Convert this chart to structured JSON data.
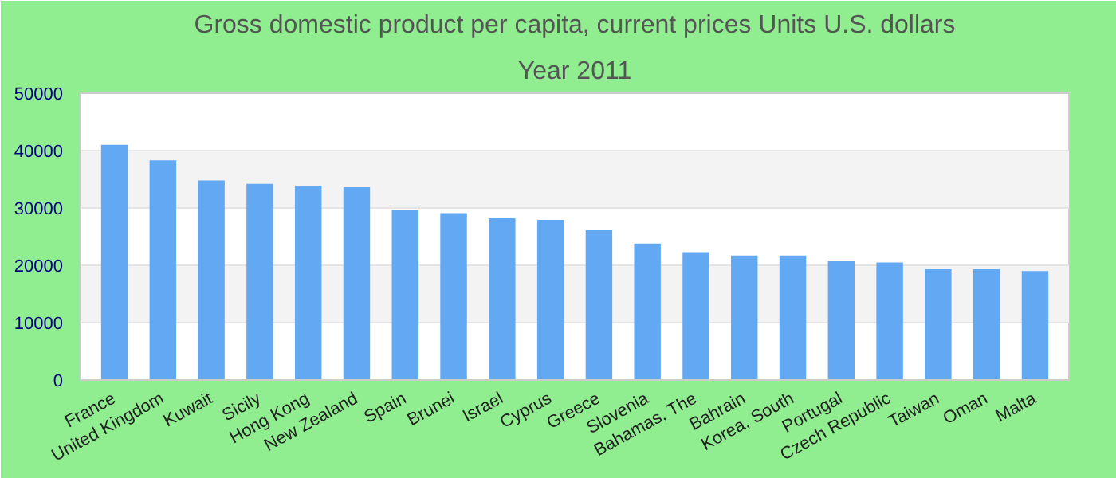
{
  "chart_data": {
    "type": "bar",
    "title": "Gross domestic product per capita, current prices Units U.S. dollars",
    "subtitle": "Year 2011",
    "categories": [
      "France",
      "United Kingdom",
      "Kuwait",
      "Sicily",
      "Hong Kong",
      "New Zealand",
      "Spain",
      "Brunei",
      "Israel",
      "Cyprus",
      "Greece",
      "Slovenia",
      "Bahamas, The",
      "Bahrain",
      "Korea, South",
      "Portugal",
      "Czech Republic",
      "Taiwan",
      "Oman",
      "Malta"
    ],
    "values": [
      41000,
      38300,
      34800,
      34200,
      33900,
      33600,
      29700,
      29100,
      28200,
      27900,
      26100,
      23800,
      22300,
      21700,
      21700,
      20800,
      20500,
      19300,
      19300,
      19000
    ],
    "color": "#62a8f3",
    "ylim": [
      0,
      50000
    ],
    "yticks": [
      0,
      10000,
      20000,
      30000,
      40000,
      50000
    ],
    "grid": "y"
  }
}
